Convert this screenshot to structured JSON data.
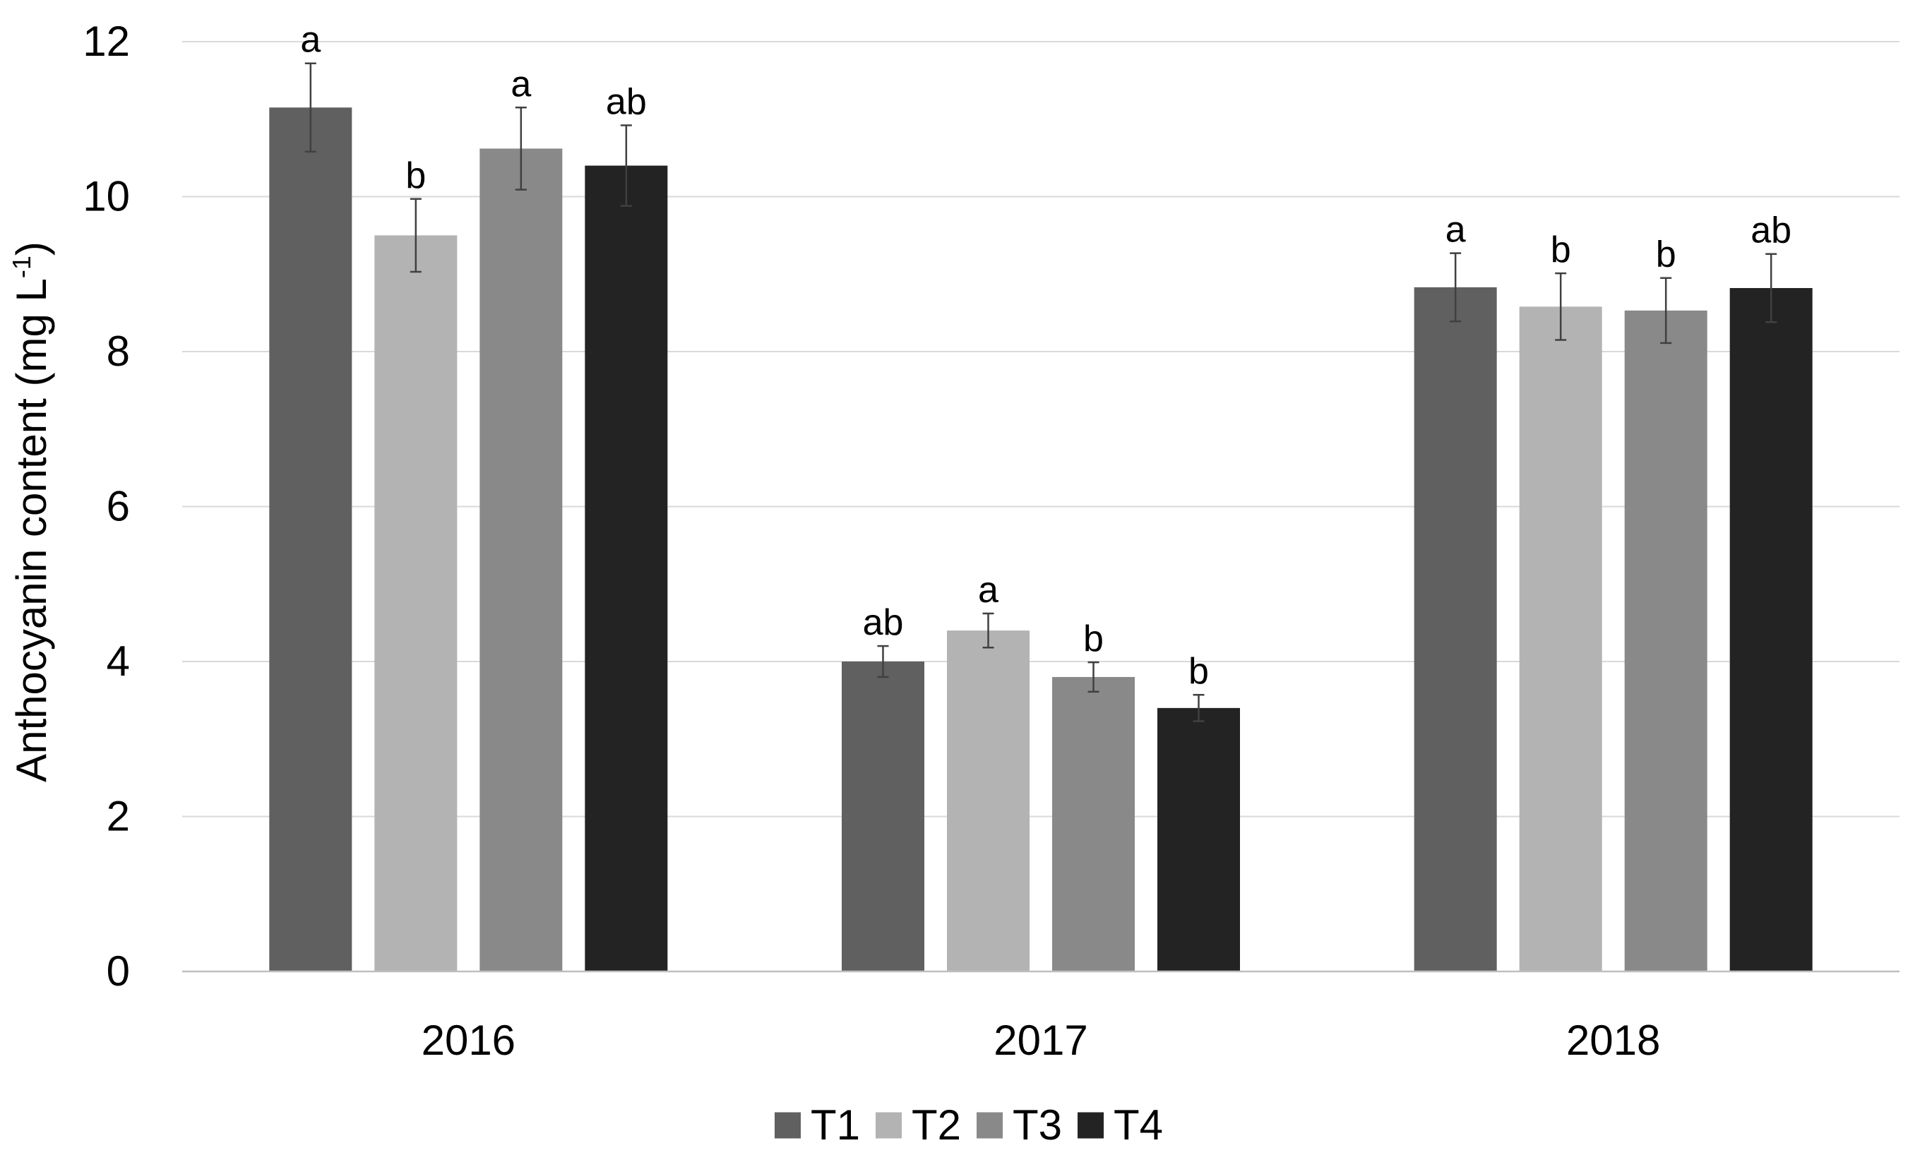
{
  "chart_data": {
    "type": "bar",
    "title": "",
    "xlabel": "",
    "ylabel_main": "Anthocyanin content (mg L",
    "ylabel_sup": "-1",
    "ylabel_close": ")",
    "ylim": [
      0,
      12
    ],
    "yticks": [
      0,
      2,
      4,
      6,
      8,
      10,
      12
    ],
    "ytick_labels": [
      "0",
      "2",
      "4",
      "6",
      "8",
      "10",
      "12"
    ],
    "grid": true,
    "legend_position": "bottom-center",
    "categories": [
      "2016",
      "2017",
      "2018"
    ],
    "series": [
      {
        "name": "T1",
        "color": "#606060",
        "values": [
          11.15,
          4.0,
          8.83
        ],
        "errors": [
          0.57,
          0.2,
          0.44
        ],
        "letters": [
          "a",
          "ab",
          "a"
        ]
      },
      {
        "name": "T2",
        "color": "#b3b3b3",
        "values": [
          9.5,
          4.4,
          8.58
        ],
        "errors": [
          0.47,
          0.22,
          0.43
        ],
        "letters": [
          "b",
          "a",
          "b"
        ]
      },
      {
        "name": "T3",
        "color": "#898989",
        "values": [
          10.62,
          3.8,
          8.53
        ],
        "errors": [
          0.53,
          0.19,
          0.42
        ],
        "letters": [
          "a",
          "b",
          "b"
        ]
      },
      {
        "name": "T4",
        "color": "#232323",
        "values": [
          10.4,
          3.4,
          8.82
        ],
        "errors": [
          0.52,
          0.17,
          0.44
        ],
        "letters": [
          "ab",
          "b",
          "ab"
        ]
      }
    ],
    "colors": {
      "grid": "#d9d9d9",
      "axis": "#bfbfbf",
      "error_bar": "#404040"
    }
  }
}
